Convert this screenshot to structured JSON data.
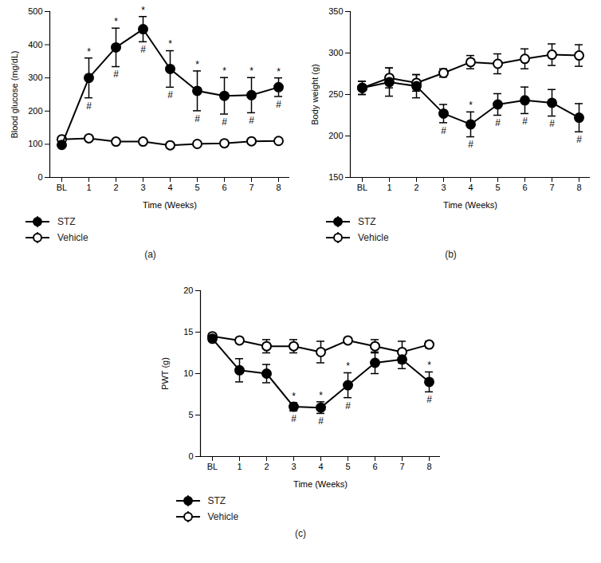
{
  "chart_data": [
    {
      "type": "line",
      "panel": "(a)",
      "x_label": "Time (Weeks)",
      "y_label": "Blood glucose (mg/dL)",
      "categories": [
        "BL",
        "1",
        "2",
        "3",
        "4",
        "5",
        "6",
        "7",
        "8"
      ],
      "ylim": [
        0,
        500
      ],
      "yticks": [
        0,
        100,
        200,
        300,
        400,
        500
      ],
      "series": [
        {
          "name": "STZ",
          "color": "#000000",
          "marker": "circle",
          "values": [
            98,
            300,
            392,
            447,
            327,
            261,
            246,
            248,
            272
          ],
          "errors": [
            3,
            60,
            58,
            38,
            55,
            60,
            55,
            53,
            28
          ]
        },
        {
          "name": "Vehicle",
          "color": "#000000",
          "marker": "open_circle",
          "values": [
            115,
            118,
            108,
            108,
            97,
            101,
            103,
            109,
            110
          ],
          "errors": [
            4,
            5,
            4,
            4,
            4,
            4,
            4,
            4,
            4
          ]
        }
      ],
      "annotations": [
        {
          "text": "*",
          "series": "STZ",
          "position": "above",
          "x": [
            "1",
            "2",
            "3",
            "4",
            "5",
            "6",
            "7",
            "8"
          ]
        },
        {
          "text": "#",
          "series": "STZ",
          "position": "below",
          "x": [
            "1",
            "2",
            "3",
            "4",
            "5",
            "6",
            "7",
            "8"
          ]
        }
      ]
    },
    {
      "type": "line",
      "panel": "(b)",
      "x_label": "Time (Weeks)",
      "y_label": "Body weight (g)",
      "categories": [
        "BL",
        "1",
        "2",
        "3",
        "4",
        "5",
        "6",
        "7",
        "8"
      ],
      "ylim": [
        150,
        350
      ],
      "yticks": [
        150,
        200,
        250,
        300,
        350
      ],
      "series": [
        {
          "name": "STZ",
          "color": "#000000",
          "marker": "circle",
          "values": [
            258,
            265,
            260,
            227,
            214,
            238,
            243,
            240,
            222
          ],
          "errors": [
            8,
            17,
            14,
            11,
            15,
            13,
            16,
            16,
            17
          ]
        },
        {
          "name": "Vehicle",
          "color": "#000000",
          "marker": "open_circle",
          "values": [
            258,
            270,
            264,
            276,
            289,
            287,
            293,
            298,
            297
          ],
          "errors": [
            8,
            12,
            10,
            5,
            8,
            12,
            12,
            13,
            13
          ]
        }
      ],
      "annotations": [
        {
          "text": "*",
          "series": "STZ",
          "position": "above",
          "x": [
            "4"
          ]
        },
        {
          "text": "#",
          "series": "STZ",
          "position": "below",
          "x": [
            "3",
            "4",
            "5",
            "6",
            "7",
            "8"
          ]
        }
      ]
    },
    {
      "type": "line",
      "panel": "(c)",
      "x_label": "Time (Weeks)",
      "y_label": "PWT (g)",
      "categories": [
        "BL",
        "1",
        "2",
        "3",
        "4",
        "5",
        "6",
        "7",
        "8"
      ],
      "ylim": [
        0,
        20
      ],
      "yticks": [
        0,
        5,
        10,
        15,
        20
      ],
      "series": [
        {
          "name": "STZ",
          "color": "#000000",
          "marker": "circle",
          "values": [
            14.2,
            10.4,
            10.0,
            6.0,
            5.9,
            8.6,
            11.3,
            11.7,
            9.0
          ],
          "errors": [
            0.3,
            1.4,
            1.1,
            0.5,
            0.7,
            1.5,
            1.3,
            1.1,
            1.2
          ]
        },
        {
          "name": "Vehicle",
          "color": "#000000",
          "marker": "open_circle",
          "values": [
            14.5,
            14.0,
            13.3,
            13.3,
            12.6,
            14.0,
            13.3,
            12.6,
            13.5
          ],
          "errors": [
            0.3,
            0.3,
            0.8,
            0.8,
            1.3,
            0.3,
            0.8,
            1.3,
            0.4
          ]
        }
      ],
      "annotations": [
        {
          "text": "*",
          "series": "STZ",
          "position": "above",
          "x": [
            "3",
            "4",
            "5",
            "8"
          ]
        },
        {
          "text": "#",
          "series": "STZ",
          "position": "below",
          "x": [
            "3",
            "4",
            "5",
            "8"
          ]
        }
      ]
    }
  ]
}
